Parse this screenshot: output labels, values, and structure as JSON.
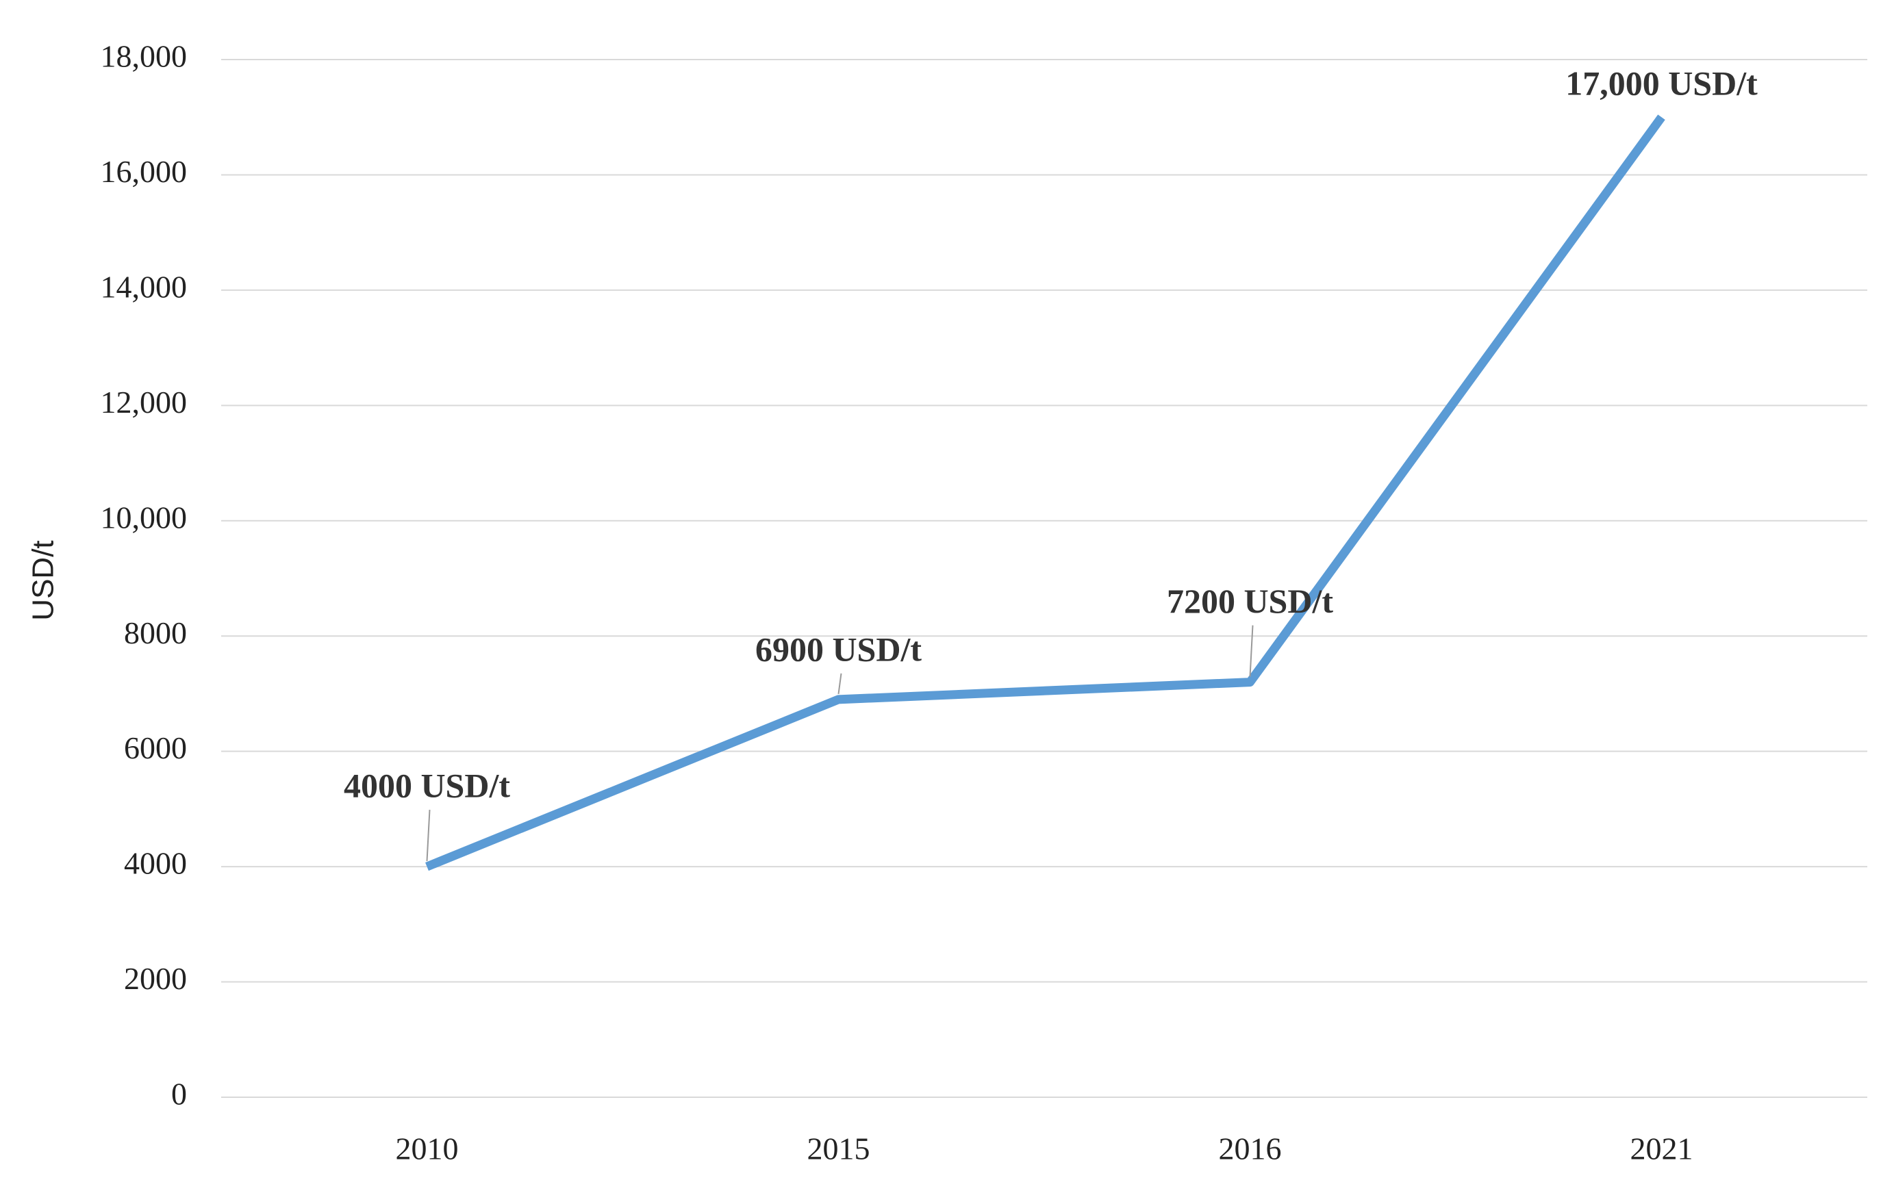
{
  "chart_data": {
    "type": "line",
    "y_label": "USD/t",
    "categories": [
      "2010",
      "2015",
      "2016",
      "2021"
    ],
    "series": [
      {
        "name": "USD/t",
        "color": "#5b9bd5",
        "values": [
          4000,
          6900,
          7200,
          17000
        ],
        "value_labels": [
          "4000 USD/t",
          "6900 USD/t",
          "7200 USD/t",
          "17,000 USD/t"
        ]
      }
    ],
    "ylim": [
      0,
      18000
    ],
    "yticks": [
      0,
      2000,
      4000,
      6000,
      8000,
      {
        "value": 10000,
        "label": "10,000"
      },
      {
        "value": 12000,
        "label": "12,000"
      },
      {
        "value": 14000,
        "label": "14,000"
      },
      {
        "value": 16000,
        "label": "16,000"
      },
      {
        "value": 18000,
        "label": "18,000"
      }
    ],
    "grid": true
  }
}
